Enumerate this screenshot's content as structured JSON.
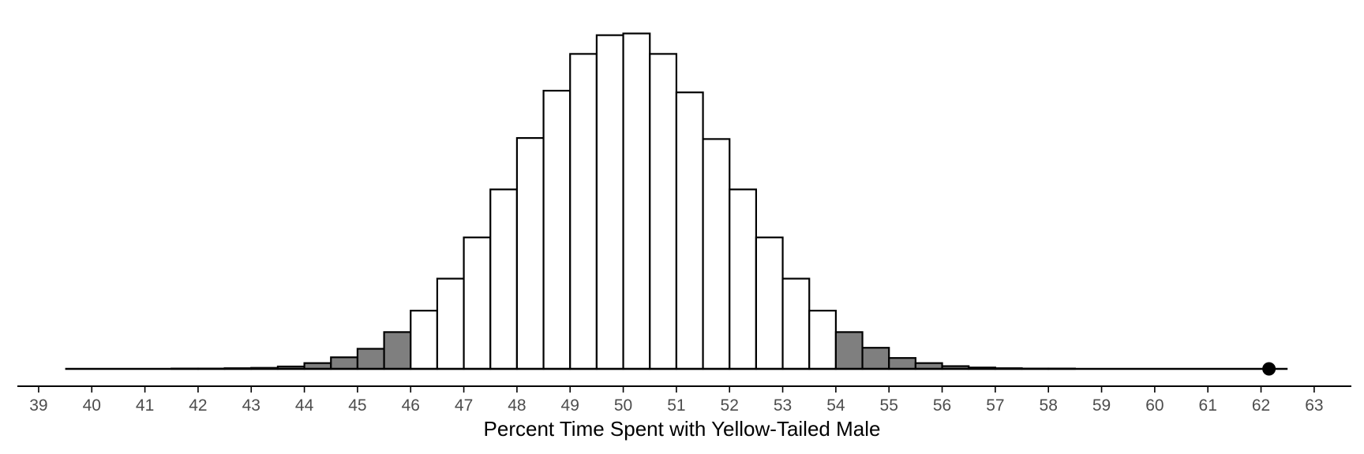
{
  "chart_data": {
    "type": "bar",
    "xlabel": "Percent Time Spent with Yellow-Tailed Male",
    "xlim": [
      38.6,
      63.7
    ],
    "ylim": [
      0,
      1
    ],
    "grid": false,
    "bin_width": 0.5,
    "x_ticks": [
      39,
      40,
      41,
      42,
      43,
      44,
      45,
      46,
      47,
      48,
      49,
      50,
      51,
      52,
      53,
      54,
      55,
      56,
      57,
      58,
      59,
      60,
      61,
      62,
      63
    ],
    "bins": [
      {
        "start": 39.5,
        "value": 0.0,
        "shaded": true
      },
      {
        "start": 40.0,
        "value": 0.0,
        "shaded": true
      },
      {
        "start": 40.5,
        "value": 0.0,
        "shaded": true
      },
      {
        "start": 41.0,
        "value": 0.0,
        "shaded": true
      },
      {
        "start": 41.5,
        "value": 0.001,
        "shaded": true
      },
      {
        "start": 42.0,
        "value": 0.001,
        "shaded": true
      },
      {
        "start": 42.5,
        "value": 0.002,
        "shaded": true
      },
      {
        "start": 43.0,
        "value": 0.003,
        "shaded": true
      },
      {
        "start": 43.5,
        "value": 0.007,
        "shaded": true
      },
      {
        "start": 44.0,
        "value": 0.017,
        "shaded": true
      },
      {
        "start": 44.5,
        "value": 0.034,
        "shaded": true
      },
      {
        "start": 45.0,
        "value": 0.059,
        "shaded": true
      },
      {
        "start": 45.5,
        "value": 0.108,
        "shaded": true
      },
      {
        "start": 46.0,
        "value": 0.171,
        "shaded": false
      },
      {
        "start": 46.5,
        "value": 0.265,
        "shaded": false
      },
      {
        "start": 47.0,
        "value": 0.386,
        "shaded": false
      },
      {
        "start": 47.5,
        "value": 0.527,
        "shaded": false
      },
      {
        "start": 48.0,
        "value": 0.678,
        "shaded": false
      },
      {
        "start": 48.5,
        "value": 0.817,
        "shaded": false
      },
      {
        "start": 49.0,
        "value": 0.925,
        "shaded": false
      },
      {
        "start": 49.5,
        "value": 0.98,
        "shaded": false
      },
      {
        "start": 50.0,
        "value": 0.985,
        "shaded": false
      },
      {
        "start": 50.5,
        "value": 0.925,
        "shaded": false
      },
      {
        "start": 51.0,
        "value": 0.812,
        "shaded": false
      },
      {
        "start": 51.5,
        "value": 0.675,
        "shaded": false
      },
      {
        "start": 52.0,
        "value": 0.527,
        "shaded": false
      },
      {
        "start": 52.5,
        "value": 0.386,
        "shaded": false
      },
      {
        "start": 53.0,
        "value": 0.265,
        "shaded": false
      },
      {
        "start": 53.5,
        "value": 0.171,
        "shaded": false
      },
      {
        "start": 54.0,
        "value": 0.108,
        "shaded": true
      },
      {
        "start": 54.5,
        "value": 0.062,
        "shaded": true
      },
      {
        "start": 55.0,
        "value": 0.032,
        "shaded": true
      },
      {
        "start": 55.5,
        "value": 0.017,
        "shaded": true
      },
      {
        "start": 56.0,
        "value": 0.008,
        "shaded": true
      },
      {
        "start": 56.5,
        "value": 0.004,
        "shaded": true
      },
      {
        "start": 57.0,
        "value": 0.002,
        "shaded": true
      },
      {
        "start": 57.5,
        "value": 0.001,
        "shaded": true
      },
      {
        "start": 58.0,
        "value": 0.001,
        "shaded": true
      },
      {
        "start": 58.5,
        "value": 0.0,
        "shaded": true
      },
      {
        "start": 59.0,
        "value": 0.0,
        "shaded": true
      },
      {
        "start": 59.5,
        "value": 0.0,
        "shaded": true
      },
      {
        "start": 60.0,
        "value": 0.0,
        "shaded": true
      },
      {
        "start": 60.5,
        "value": 0.0,
        "shaded": true
      },
      {
        "start": 61.0,
        "value": 0.0,
        "shaded": true
      },
      {
        "start": 61.5,
        "value": 0.0,
        "shaded": true
      },
      {
        "start": 62.0,
        "value": 0.0,
        "shaded": true
      }
    ],
    "baseline_range": [
      39.5,
      62.5
    ],
    "observed_point": {
      "x": 62.15,
      "y": 0
    },
    "colors": {
      "bar_fill": "#ffffff",
      "bar_shaded_fill": "#7f7f7f",
      "bar_stroke": "#000000",
      "axis": "#000000",
      "tick_label": "#4d4d4d",
      "point": "#000000"
    }
  }
}
